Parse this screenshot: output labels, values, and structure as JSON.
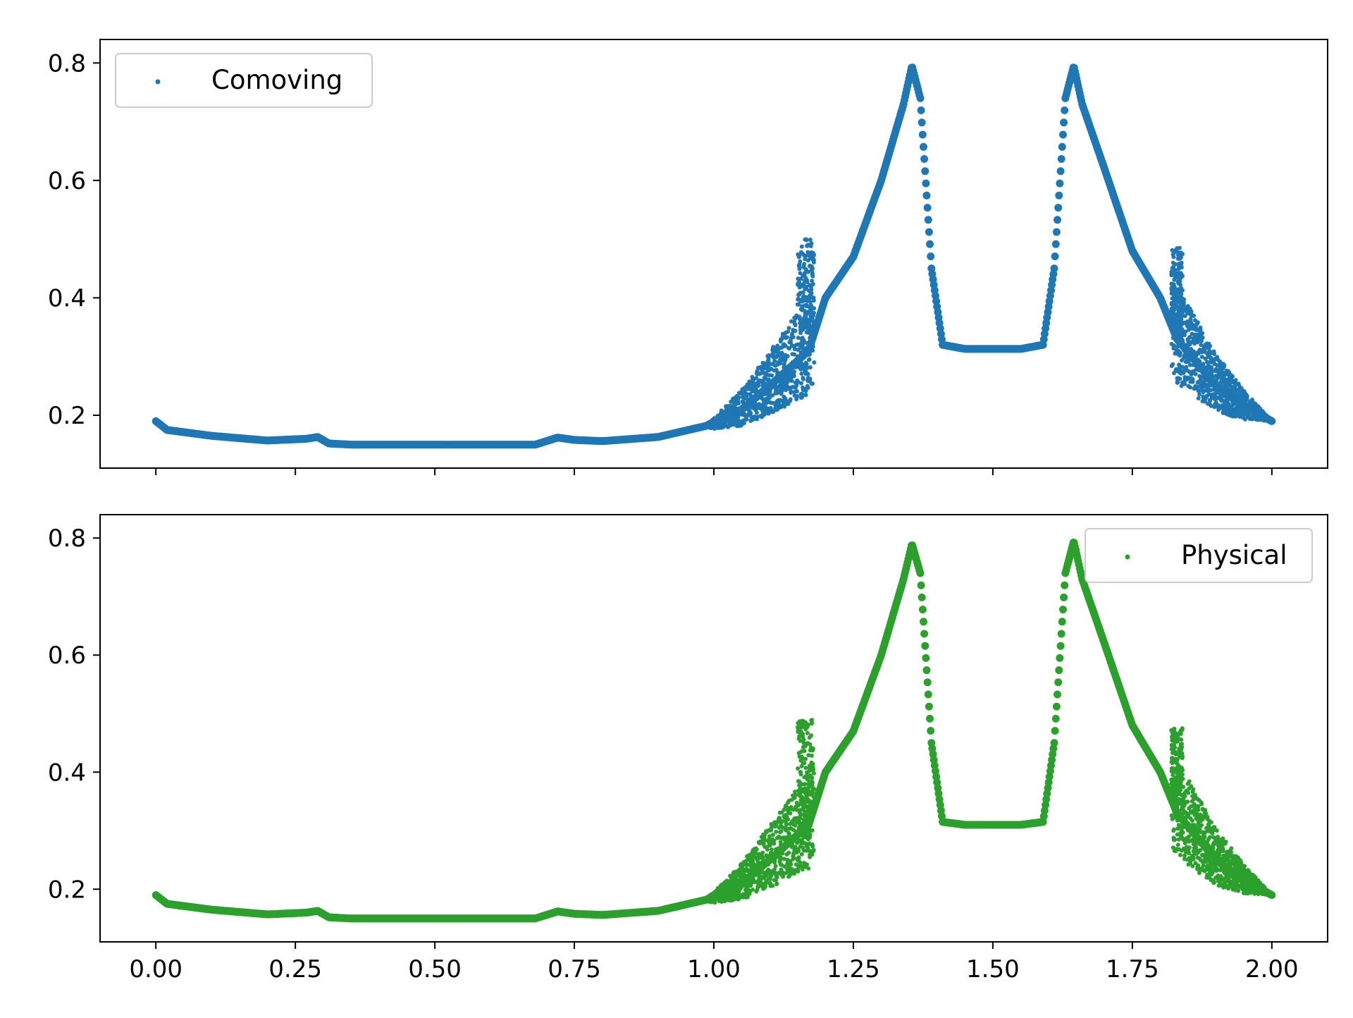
{
  "chart_data": [
    {
      "type": "scatter",
      "title": "",
      "xlabel": "",
      "ylabel": "",
      "xlim": [
        -0.1,
        2.1
      ],
      "ylim": [
        0.11,
        0.84
      ],
      "x_ticks": [
        0.0,
        0.25,
        0.5,
        0.75,
        1.0,
        1.25,
        1.5,
        1.75,
        2.0
      ],
      "x_tick_labels_visible": false,
      "y_ticks": [
        0.2,
        0.4,
        0.6,
        0.8
      ],
      "y_tick_labels": [
        "0.2",
        "0.4",
        "0.6",
        "0.8"
      ],
      "legend_position": "upper-left",
      "grid": false,
      "series": [
        {
          "name": "Comoving",
          "color": "#1f77b4",
          "profile": [
            [
              0.0,
              0.19
            ],
            [
              0.02,
              0.175
            ],
            [
              0.1,
              0.165
            ],
            [
              0.2,
              0.157
            ],
            [
              0.27,
              0.16
            ],
            [
              0.29,
              0.163
            ],
            [
              0.31,
              0.152
            ],
            [
              0.35,
              0.15
            ],
            [
              0.5,
              0.15
            ],
            [
              0.68,
              0.15
            ],
            [
              0.7,
              0.156
            ],
            [
              0.72,
              0.162
            ],
            [
              0.75,
              0.158
            ],
            [
              0.8,
              0.156
            ],
            [
              0.9,
              0.163
            ],
            [
              1.0,
              0.185
            ],
            [
              1.05,
              0.21
            ],
            [
              1.1,
              0.25
            ],
            [
              1.17,
              0.31
            ],
            [
              1.2,
              0.4
            ],
            [
              1.25,
              0.47
            ],
            [
              1.3,
              0.6
            ],
            [
              1.34,
              0.73
            ],
            [
              1.355,
              0.795
            ],
            [
              1.37,
              0.74
            ],
            [
              1.39,
              0.45
            ],
            [
              1.41,
              0.32
            ],
            [
              1.45,
              0.313
            ],
            [
              1.5,
              0.313
            ],
            [
              1.55,
              0.313
            ],
            [
              1.59,
              0.32
            ],
            [
              1.61,
              0.45
            ],
            [
              1.63,
              0.74
            ],
            [
              1.645,
              0.795
            ],
            [
              1.66,
              0.73
            ],
            [
              1.7,
              0.62
            ],
            [
              1.75,
              0.48
            ],
            [
              1.8,
              0.4
            ],
            [
              1.83,
              0.33
            ],
            [
              1.9,
              0.25
            ],
            [
              1.95,
              0.215
            ],
            [
              2.0,
              0.19
            ]
          ],
          "scatter_bands": [
            {
              "x": [
                0.98,
                1.18
              ],
              "spread": [
                0.0,
                0.11
              ]
            },
            {
              "x": [
                1.15,
                1.18
              ],
              "peak": 0.5
            },
            {
              "x": [
                1.82,
                2.0
              ],
              "spread": [
                0.11,
                0.0
              ]
            },
            {
              "x": [
                1.82,
                1.84
              ],
              "peak": 0.485
            }
          ]
        }
      ]
    },
    {
      "type": "scatter",
      "title": "",
      "xlabel": "",
      "ylabel": "",
      "xlim": [
        -0.1,
        2.1
      ],
      "ylim": [
        0.11,
        0.84
      ],
      "x_ticks": [
        0.0,
        0.25,
        0.5,
        0.75,
        1.0,
        1.25,
        1.5,
        1.75,
        2.0
      ],
      "x_tick_labels": [
        "0.00",
        "0.25",
        "0.50",
        "0.75",
        "1.00",
        "1.25",
        "1.50",
        "1.75",
        "2.00"
      ],
      "y_ticks": [
        0.2,
        0.4,
        0.6,
        0.8
      ],
      "y_tick_labels": [
        "0.2",
        "0.4",
        "0.6",
        "0.8"
      ],
      "legend_position": "upper-right",
      "grid": false,
      "series": [
        {
          "name": "Physical",
          "color": "#2ca02c",
          "profile": [
            [
              0.0,
              0.19
            ],
            [
              0.02,
              0.175
            ],
            [
              0.1,
              0.165
            ],
            [
              0.2,
              0.157
            ],
            [
              0.27,
              0.16
            ],
            [
              0.29,
              0.163
            ],
            [
              0.31,
              0.152
            ],
            [
              0.35,
              0.15
            ],
            [
              0.5,
              0.15
            ],
            [
              0.68,
              0.15
            ],
            [
              0.7,
              0.156
            ],
            [
              0.72,
              0.162
            ],
            [
              0.75,
              0.158
            ],
            [
              0.8,
              0.156
            ],
            [
              0.9,
              0.163
            ],
            [
              1.0,
              0.185
            ],
            [
              1.05,
              0.21
            ],
            [
              1.1,
              0.25
            ],
            [
              1.17,
              0.31
            ],
            [
              1.2,
              0.4
            ],
            [
              1.25,
              0.47
            ],
            [
              1.3,
              0.6
            ],
            [
              1.34,
              0.73
            ],
            [
              1.355,
              0.79
            ],
            [
              1.37,
              0.74
            ],
            [
              1.39,
              0.45
            ],
            [
              1.41,
              0.315
            ],
            [
              1.45,
              0.31
            ],
            [
              1.5,
              0.31
            ],
            [
              1.55,
              0.31
            ],
            [
              1.59,
              0.315
            ],
            [
              1.61,
              0.45
            ],
            [
              1.63,
              0.74
            ],
            [
              1.645,
              0.795
            ],
            [
              1.66,
              0.73
            ],
            [
              1.7,
              0.62
            ],
            [
              1.75,
              0.48
            ],
            [
              1.8,
              0.4
            ],
            [
              1.83,
              0.33
            ],
            [
              1.9,
              0.25
            ],
            [
              1.95,
              0.215
            ],
            [
              2.0,
              0.19
            ]
          ],
          "scatter_bands": [
            {
              "x": [
                0.98,
                1.18
              ],
              "spread": [
                0.0,
                0.11
              ]
            },
            {
              "x": [
                1.15,
                1.18
              ],
              "peak": 0.49
            },
            {
              "x": [
                1.82,
                2.0
              ],
              "spread": [
                0.11,
                0.0
              ]
            },
            {
              "x": [
                1.82,
                1.84
              ],
              "peak": 0.475
            }
          ]
        }
      ]
    }
  ]
}
